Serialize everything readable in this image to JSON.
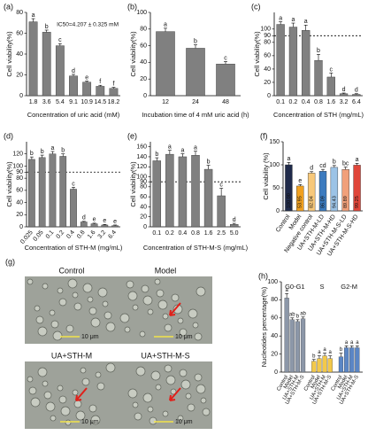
{
  "chart_data": [
    {
      "type": "bar",
      "panel": "(a)",
      "x_label": "Concentration of uric acid (mM)",
      "y_label": "Cell viability(%)",
      "annotation": "IC50=4.207 ± 0.325 mM",
      "categories": [
        "1.8",
        "3.6",
        "5.4",
        "9.1",
        "10.9",
        "14.5",
        "18.2"
      ],
      "values": [
        71,
        61,
        48,
        19,
        13,
        9,
        7
      ],
      "errors": [
        3,
        2,
        2,
        1.5,
        1,
        1,
        1
      ],
      "letters": [
        "a",
        "b",
        "c",
        "d",
        "e",
        "f",
        "f"
      ],
      "ylim": [
        0,
        80
      ],
      "yticks": [
        0,
        20,
        40,
        60,
        80
      ],
      "color": "#808080"
    },
    {
      "type": "bar",
      "panel": "(b)",
      "x_label": "Incubation time of 4 mM uric acid (h)",
      "y_label": "Cell viability(%)",
      "categories": [
        "12",
        "24",
        "48"
      ],
      "values": [
        77,
        57,
        38
      ],
      "errors": [
        4,
        4,
        3
      ],
      "letters": [
        "a",
        "b",
        "c"
      ],
      "ylim": [
        0,
        100
      ],
      "yticks": [
        0,
        20,
        40,
        60,
        80,
        100
      ],
      "color": "#808080"
    },
    {
      "type": "bar",
      "panel": "(c)",
      "x_label": "Concentration of STH (mg/mL)",
      "y_label": "Cell viability(%)",
      "categories": [
        "0.1",
        "0.2",
        "0.4",
        "0.8",
        "1.6",
        "3.2",
        "6.4"
      ],
      "values": [
        107,
        103,
        98,
        53,
        28,
        3,
        2
      ],
      "errors": [
        4,
        6,
        8,
        9,
        6,
        1,
        1
      ],
      "letters": [
        "a",
        "a",
        "a",
        "b",
        "c",
        "d",
        "d"
      ],
      "refline": 90,
      "ylim": [
        0,
        125
      ],
      "yticks": [
        0,
        20,
        40,
        60,
        80,
        90,
        100
      ],
      "color": "#808080"
    },
    {
      "type": "bar",
      "panel": "(d)",
      "x_label": "Concentration of STH-M (mg/mL)",
      "y_label": "Cell viability(%)",
      "categories": [
        "0.025",
        "0.05",
        "0.1",
        "0.2",
        "0.4",
        "0.8",
        "1.6",
        "3.2",
        "6.4"
      ],
      "values": [
        111,
        114,
        120,
        116,
        62,
        8,
        5,
        3,
        2
      ],
      "errors": [
        4,
        4,
        4,
        4,
        3,
        1,
        1,
        1,
        1
      ],
      "letters": [
        "b",
        "b",
        "a",
        "b",
        "c",
        "d",
        "e",
        "e",
        "e"
      ],
      "refline": 90,
      "ylim": [
        0,
        140
      ],
      "yticks": [
        0,
        20,
        40,
        60,
        80,
        90,
        100,
        120
      ],
      "color": "#808080"
    },
    {
      "type": "bar",
      "panel": "(e)",
      "x_label": "Concentration of STH-M-S (mg/mL)",
      "y_label": "Cell viability(%)",
      "categories": [
        "0.1",
        "0.2",
        "0.4",
        "0.8",
        "1.6",
        "2.5",
        "5.0"
      ],
      "values": [
        132,
        145,
        140,
        143,
        115,
        62,
        5
      ],
      "errors": [
        6,
        8,
        6,
        8,
        8,
        15,
        2
      ],
      "letters": [
        "b",
        "a",
        "a",
        "a",
        "b",
        "c",
        "d"
      ],
      "refline": 90,
      "ylim": [
        0,
        170
      ],
      "yticks": [
        0,
        20,
        40,
        60,
        80,
        90,
        100,
        120,
        140,
        160
      ],
      "color": "#808080"
    },
    {
      "type": "bar",
      "panel": "(f)",
      "y_label": "Cell viability (%)",
      "categories": [
        "Control",
        "Model",
        "Negative control",
        "UA+STH-M-LD",
        "UA+STH-M-HD",
        "UA+STH-M-S-LD",
        "UA+STH-M-S-HD"
      ],
      "values": [
        100,
        53.95,
        82.04,
        86.09,
        94.43,
        89.89,
        99.25
      ],
      "value_labels": [
        "100.00",
        "53.95",
        "82.04",
        "86.09",
        "94.43",
        "89.89",
        "99.25"
      ],
      "errors": [
        5,
        3,
        3,
        4,
        4,
        5,
        4
      ],
      "letters": [
        "a",
        "e",
        "d",
        "cd",
        "b",
        "bc",
        "a"
      ],
      "colors": [
        "#1f2a4a",
        "#f0a020",
        "#f7c87a",
        "#3c7bbf",
        "#9cc3e6",
        "#f1a07a",
        "#e0463a"
      ],
      "ylim": [
        0,
        150
      ],
      "yticks": [
        0,
        50,
        100,
        150
      ]
    },
    {
      "type": "image",
      "panel": "(g)",
      "images": [
        {
          "label": "Control",
          "scale": "10 μm"
        },
        {
          "label": "Model",
          "scale": "10 μm"
        },
        {
          "label": "UA+STH-M",
          "scale": "10 μm"
        },
        {
          "label": "UA+STH-M-S",
          "scale": "10 μm"
        }
      ]
    },
    {
      "type": "grouped_bar",
      "panel": "(h)",
      "y_label": "Nucleotides percentage(%)",
      "categories": [
        "G0-G1",
        "S",
        "G2-M"
      ],
      "group_colors": [
        "#8c97a8",
        "#f3c94a",
        "#5b86c5"
      ],
      "series": [
        {
          "name": "Control",
          "values": [
            82,
            12,
            17
          ],
          "errors": [
            5,
            2,
            4
          ],
          "letters": [
            "a",
            "b",
            "b"
          ]
        },
        {
          "name": "Model",
          "values": [
            58,
            15,
            27
          ],
          "errors": [
            2,
            3,
            2
          ],
          "letters": [
            "ab",
            "a",
            "a"
          ]
        },
        {
          "name": "UA+STH-M",
          "values": [
            56,
            18,
            27
          ],
          "errors": [
            2,
            3,
            2
          ],
          "letters": [
            "b",
            "a",
            "a"
          ]
        },
        {
          "name": "UA+STH-M-S",
          "values": [
            59,
            15,
            27
          ],
          "errors": [
            2,
            3,
            2
          ],
          "letters": [
            "ab",
            "a",
            "a"
          ]
        }
      ],
      "ylim": [
        0,
        100
      ],
      "yticks": [
        0,
        20,
        40,
        60,
        80,
        100
      ]
    }
  ]
}
